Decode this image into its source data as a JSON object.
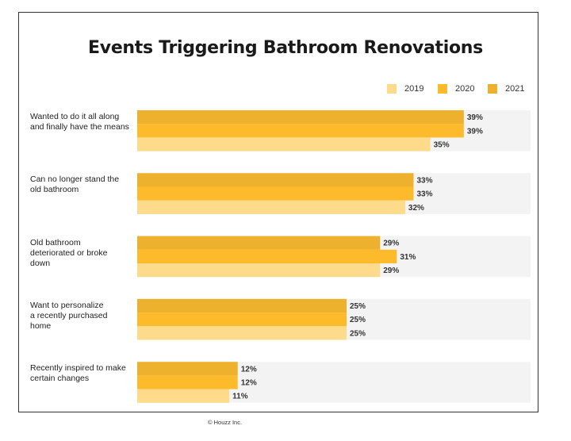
{
  "chart_data": {
    "type": "bar",
    "orientation": "horizontal",
    "title": "Events Triggering Bathroom Renovations",
    "categories": [
      "Wanted to do it all along and finally have the means",
      "Can no longer stand the old bathroom",
      "Old bathroom deteriorated or broke down",
      "Want to personalize a recently purchased home",
      "Recently inspired to make certain changes"
    ],
    "category_lines": [
      [
        "Wanted to do it all along",
        "and finally have the means"
      ],
      [
        "Can no longer stand the",
        "old bathroom"
      ],
      [
        "Old bathroom",
        "deteriorated or broke",
        "down"
      ],
      [
        "Want to personalize",
        "a recently purchased",
        "home"
      ],
      [
        "Recently inspired to make",
        "certain changes"
      ]
    ],
    "series": [
      {
        "name": "2021",
        "color": "#EDB12E",
        "values": [
          39,
          33,
          29,
          25,
          12
        ]
      },
      {
        "name": "2020",
        "color": "#FDBB2C",
        "values": [
          39,
          33,
          31,
          25,
          12
        ]
      },
      {
        "name": "2019",
        "color": "#FDDB8B",
        "values": [
          35,
          32,
          29,
          25,
          11
        ]
      }
    ],
    "legend_order": [
      "2019",
      "2020",
      "2021"
    ],
    "legend_position": "top-right",
    "value_suffix": "%",
    "xlim": [
      0,
      45
    ],
    "grid": false,
    "track_color": "#F3F3F3"
  },
  "footer": {
    "copyright": "© Houzz Inc."
  }
}
